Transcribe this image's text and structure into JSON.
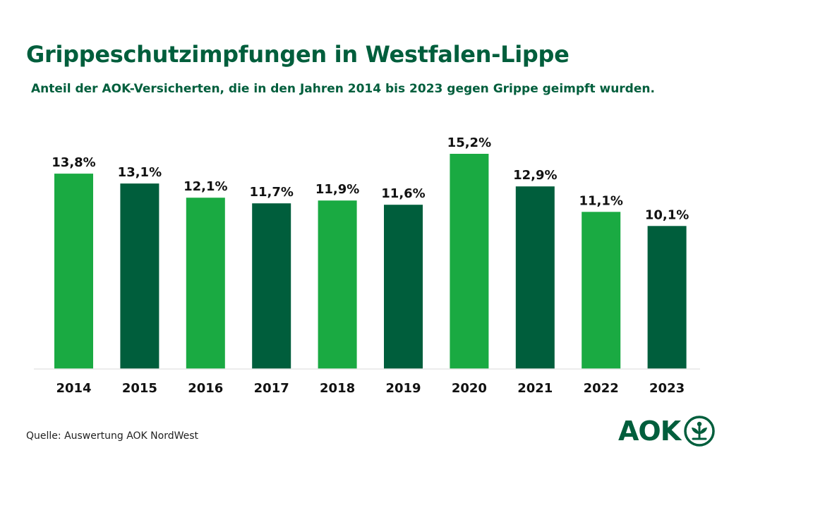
{
  "title": "Grippeschutzimpfungen in Westfalen-Lippe",
  "subtitle": "Anteil der AOK-Versicherten, die in den Jahren 2014 bis 2023 gegen Grippe geimpft wurden.",
  "source": "Quelle: Auswertung AOK NordWest",
  "logo": {
    "text": "AOK",
    "icon": "aok-tree-emblem-icon"
  },
  "colors": {
    "light": "#1aaa42",
    "dark": "#005e3c",
    "text": "#111111",
    "brand": "#005e3c"
  },
  "chart_data": {
    "type": "bar",
    "categories": [
      "2014",
      "2015",
      "2016",
      "2017",
      "2018",
      "2019",
      "2020",
      "2021",
      "2022",
      "2023"
    ],
    "values": [
      13.8,
      13.1,
      12.1,
      11.7,
      11.9,
      11.6,
      15.2,
      12.9,
      11.1,
      10.1
    ],
    "value_labels": [
      "13,8%",
      "13,1%",
      "12,1%",
      "11,7%",
      "11,9%",
      "11,6%",
      "15,2%",
      "12,9%",
      "11,1%",
      "10,1%"
    ],
    "bar_colors": [
      "#1aaa42",
      "#005e3c",
      "#1aaa42",
      "#005e3c",
      "#1aaa42",
      "#005e3c",
      "#1aaa42",
      "#005e3c",
      "#1aaa42",
      "#005e3c"
    ],
    "unit": "%",
    "ylim": [
      0,
      15.2
    ],
    "grid": false,
    "legend": "none"
  }
}
